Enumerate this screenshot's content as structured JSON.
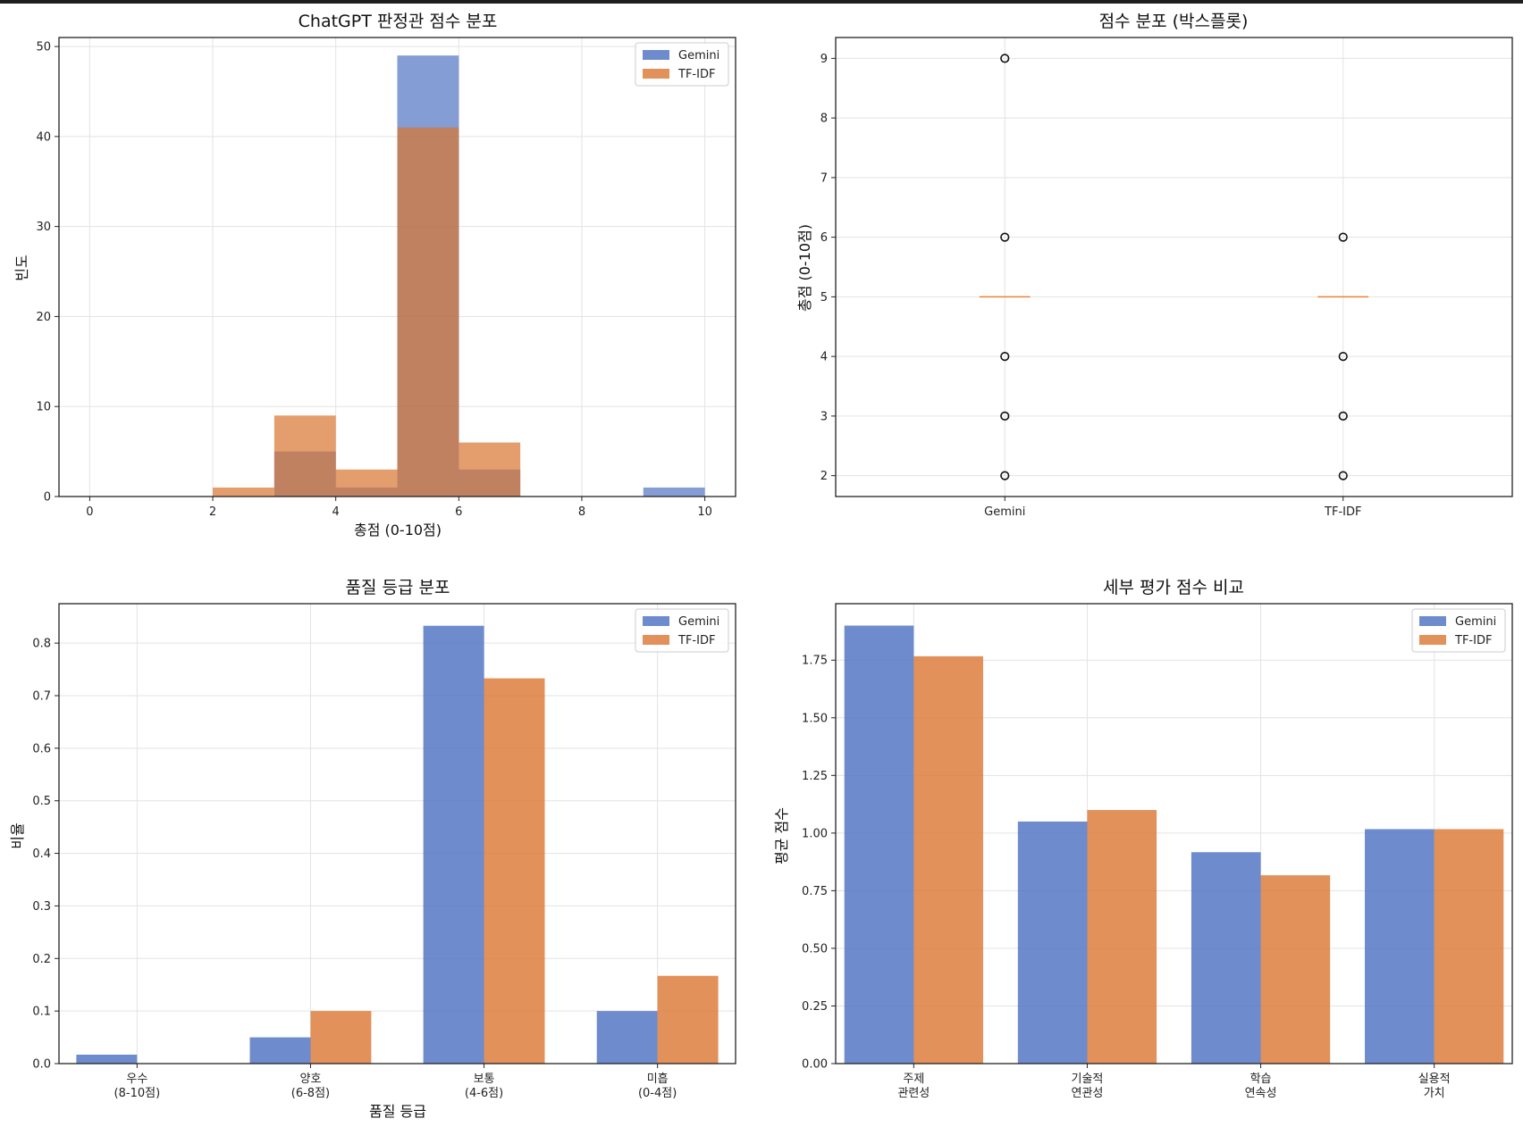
{
  "colors": {
    "gemini": "#4a6fc0",
    "tfidf": "#d9752f",
    "median": "#e8833a",
    "grid": "#e3e3e3"
  },
  "chart_data": [
    {
      "id": "hist",
      "type": "bar",
      "title": "ChatGPT 판정관 점수 분포",
      "xlabel": "총점 (0-10점)",
      "ylabel": "빈도",
      "xlim": [
        -0.5,
        10.5
      ],
      "ylim": [
        0,
        51
      ],
      "xticks": [
        0,
        2,
        4,
        6,
        8,
        10
      ],
      "yticks": [
        0,
        10,
        20,
        30,
        40,
        50
      ],
      "legend": [
        "Gemini",
        "TF-IDF"
      ],
      "legend_position": "top-right",
      "bin_edges": [
        2,
        3,
        4,
        5,
        6,
        7,
        8,
        9,
        10
      ],
      "series": [
        {
          "name": "Gemini",
          "counts": [
            0,
            5,
            1,
            49,
            3,
            0,
            0,
            1
          ]
        },
        {
          "name": "TF-IDF",
          "counts": [
            1,
            9,
            3,
            41,
            6,
            0,
            0,
            0
          ]
        }
      ]
    },
    {
      "id": "box",
      "type": "scatter",
      "title": "점수 분포 (박스플롯)",
      "xlabel": "",
      "ylabel": "총점 (0-10점)",
      "ylim": [
        1.65,
        9.35
      ],
      "yticks": [
        2,
        3,
        4,
        5,
        6,
        7,
        8,
        9
      ],
      "categories": [
        "Gemini",
        "TF-IDF"
      ],
      "medians": [
        5,
        5
      ],
      "outliers": [
        [
          9,
          6,
          4,
          3,
          2
        ],
        [
          6,
          4,
          3,
          2
        ]
      ]
    },
    {
      "id": "grade",
      "type": "bar",
      "title": "품질 등급 분포",
      "xlabel": "품질 등급",
      "ylabel": "비율",
      "ylim": [
        0,
        0.875
      ],
      "yticks": [
        0.0,
        0.1,
        0.2,
        0.3,
        0.4,
        0.5,
        0.6,
        0.7,
        0.8
      ],
      "ytick_labels": [
        "0.0",
        "0.1",
        "0.2",
        "0.3",
        "0.4",
        "0.5",
        "0.6",
        "0.7",
        "0.8"
      ],
      "categories": [
        [
          "우수",
          "(8-10점)"
        ],
        [
          "양호",
          "(6-8점)"
        ],
        [
          "보통",
          "(4-6점)"
        ],
        [
          "미흡",
          "(0-4점)"
        ]
      ],
      "legend": [
        "Gemini",
        "TF-IDF"
      ],
      "legend_position": "top-right",
      "series": [
        {
          "name": "Gemini",
          "values": [
            0.017,
            0.05,
            0.833,
            0.1
          ]
        },
        {
          "name": "TF-IDF",
          "values": [
            0.0,
            0.1,
            0.733,
            0.167
          ]
        }
      ]
    },
    {
      "id": "detail",
      "type": "bar",
      "title": "세부 평가 점수 비교",
      "xlabel": "",
      "ylabel": "평균 점수",
      "ylim": [
        0,
        1.995
      ],
      "yticks": [
        0,
        0.25,
        0.5,
        0.75,
        1.0,
        1.25,
        1.5,
        1.75
      ],
      "ytick_labels": [
        "0.00",
        "0.25",
        "0.50",
        "0.75",
        "1.00",
        "1.25",
        "1.50",
        "1.75"
      ],
      "categories": [
        [
          "주제",
          "관련성"
        ],
        [
          "기술적",
          "연관성"
        ],
        [
          "학습",
          "연속성"
        ],
        [
          "실용적",
          "가치"
        ]
      ],
      "legend": [
        "Gemini",
        "TF-IDF"
      ],
      "legend_position": "top-right",
      "series": [
        {
          "name": "Gemini",
          "values": [
            1.9,
            1.05,
            0.917,
            1.017
          ]
        },
        {
          "name": "TF-IDF",
          "values": [
            1.767,
            1.1,
            0.817,
            1.017
          ]
        }
      ]
    }
  ]
}
